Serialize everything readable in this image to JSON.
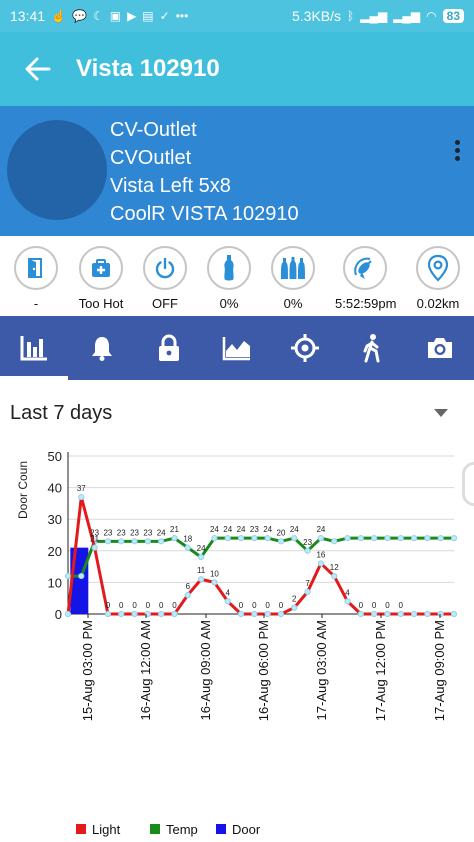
{
  "status_bar": {
    "time": "13:41",
    "speed": "5.3KB/s",
    "battery": "83"
  },
  "app_bar": {
    "title": "Vista 102910"
  },
  "device": {
    "lines": [
      "CV-Outlet",
      "CVOutlet",
      "Vista Left 5x8",
      "CoolR VISTA  102910"
    ]
  },
  "stats": [
    {
      "icon": "door-icon",
      "label": "-"
    },
    {
      "icon": "health-kit-icon",
      "label": "Too Hot"
    },
    {
      "icon": "power-icon",
      "label": "OFF"
    },
    {
      "icon": "bottle-icon",
      "label": "0%"
    },
    {
      "icon": "bottles-icon",
      "label": "0%"
    },
    {
      "icon": "satellite-icon",
      "label": "5:52:59pm"
    },
    {
      "icon": "location-pin-icon",
      "label": "0.02km"
    }
  ],
  "tabs": [
    "bar-chart-tab",
    "alerts-tab",
    "lock-tab",
    "line-chart-tab",
    "target-tab",
    "walking-tab",
    "camera-tab"
  ],
  "range": {
    "label": "Last 7 days"
  },
  "chart_data": {
    "type": "line",
    "ylabel": "Door Coun",
    "ylim": [
      0,
      50
    ],
    "yticks": [
      0,
      10,
      20,
      30,
      40,
      50
    ],
    "x_tick_labels": [
      "15-Aug 03:00 PM",
      "16-Aug 12:00 AM",
      "16-Aug 09:00 AM",
      "16-Aug 06:00 PM",
      "17-Aug 03:00 AM",
      "17-Aug 12:00 PM",
      "17-Aug 09:00 PM"
    ],
    "series": [
      {
        "name": "Light",
        "color": "#e31a1c",
        "values": [
          0,
          37,
          21,
          0,
          0,
          0,
          0,
          0,
          0,
          6,
          11,
          10,
          4,
          0,
          0,
          0,
          0,
          2,
          7,
          16,
          12,
          4,
          0,
          0,
          0,
          0,
          0,
          0,
          0,
          0
        ]
      },
      {
        "name": "Temp",
        "color": "#1a8a1a",
        "values": [
          12,
          12,
          23,
          23,
          23,
          23,
          23,
          23,
          24,
          21,
          18,
          24,
          24,
          24,
          24,
          24,
          23,
          24,
          20,
          24,
          23,
          24,
          24,
          24,
          24,
          24,
          24,
          24,
          24,
          24
        ]
      },
      {
        "name": "Door",
        "color": "#1414e6",
        "type": "bar",
        "values": [
          1,
          21
        ]
      }
    ],
    "light_labels": [
      "37",
      "21",
      "0",
      "0",
      "0",
      "0",
      "0",
      "0",
      "6",
      "11",
      "10",
      "4",
      "0",
      "0",
      "0",
      "0",
      "2",
      "7",
      "16",
      "12",
      "4",
      "0",
      "0",
      "0",
      "0"
    ],
    "temp_labels": [
      "23",
      "23",
      "23",
      "23",
      "23",
      "24",
      "21",
      "18",
      "24",
      "24",
      "24",
      "24",
      "23",
      "24",
      "20",
      "24",
      "23",
      "24"
    ],
    "legend": [
      {
        "name": "Light",
        "color": "#e31a1c"
      },
      {
        "name": "Temp",
        "color": "#1a8a1a"
      },
      {
        "name": "Door",
        "color": "#1414e6"
      }
    ]
  }
}
